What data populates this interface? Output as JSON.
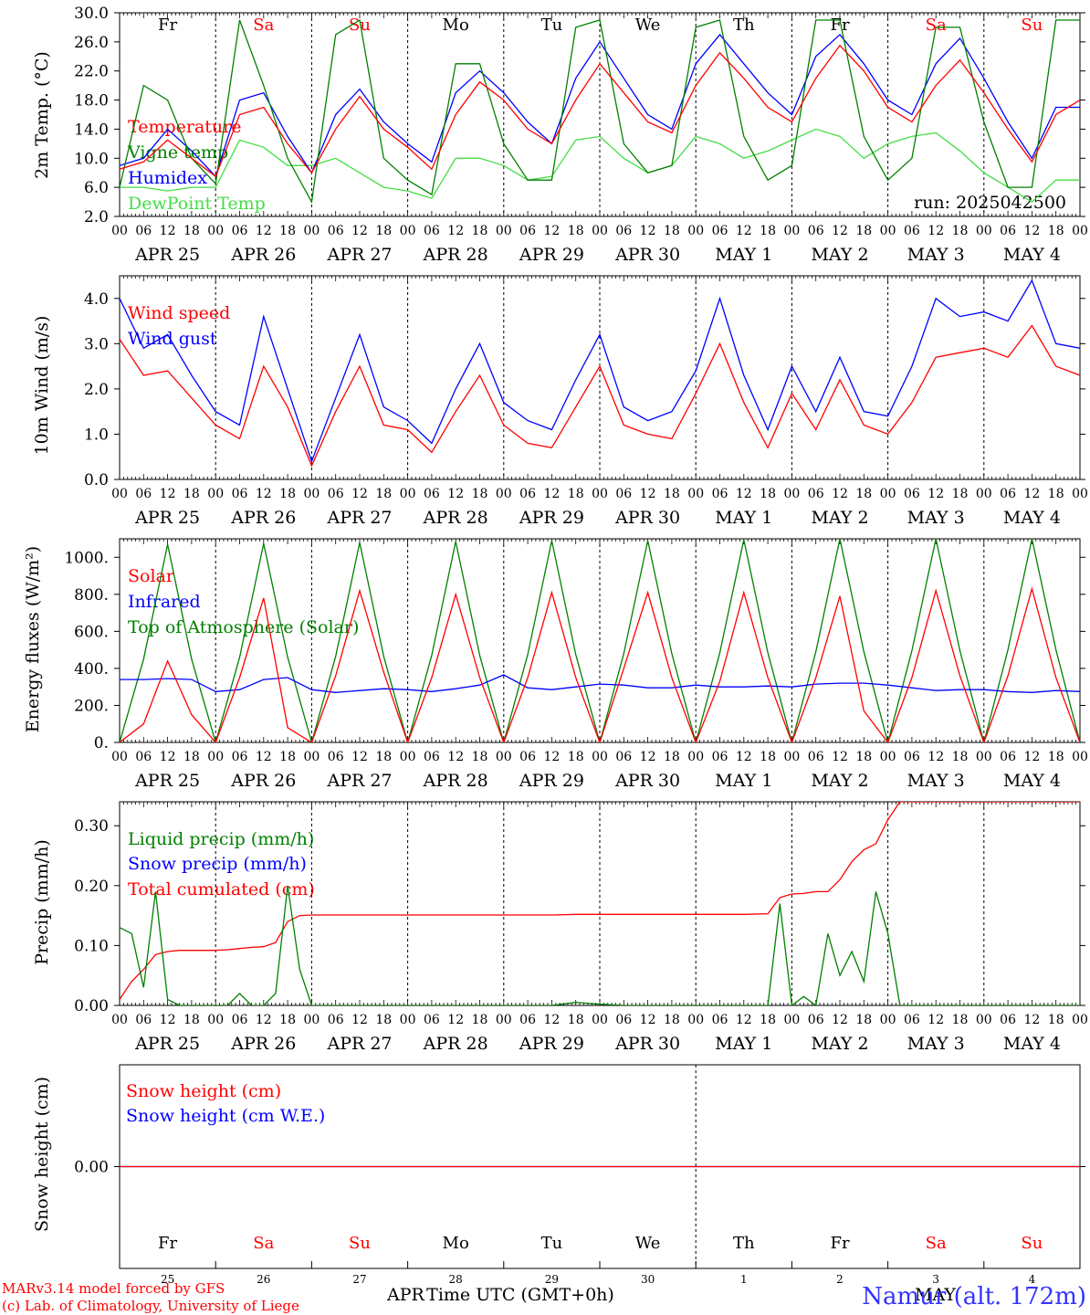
{
  "days": [
    {
      "dow": "Fr",
      "weekend": false,
      "date": "APR 25",
      "num": "25"
    },
    {
      "dow": "Sa",
      "weekend": true,
      "date": "APR 26",
      "num": "26"
    },
    {
      "dow": "Su",
      "weekend": true,
      "date": "APR 27",
      "num": "27"
    },
    {
      "dow": "Mo",
      "weekend": false,
      "date": "APR 28",
      "num": "28"
    },
    {
      "dow": "Tu",
      "weekend": false,
      "date": "APR 29",
      "num": "29"
    },
    {
      "dow": "We",
      "weekend": false,
      "date": "APR 30",
      "num": "30"
    },
    {
      "dow": "Th",
      "weekend": false,
      "date": "MAY  1",
      "num": "1"
    },
    {
      "dow": "Fr",
      "weekend": false,
      "date": "MAY  2",
      "num": "2"
    },
    {
      "dow": "Sa",
      "weekend": true,
      "date": "MAY  3",
      "num": "3"
    },
    {
      "dow": "Su",
      "weekend": true,
      "date": "MAY  4",
      "num": "4"
    }
  ],
  "hour_ticks": [
    "00",
    "06",
    "12",
    "18"
  ],
  "month_labels": {
    "apr": "APR",
    "may": "MAY"
  },
  "xlabel": "Time UTC (GMT+0h)",
  "credits": [
    "MARv3.14 model forced by GFS",
    "(c) Lab. of Climatology, University of Liege"
  ],
  "station": "Namur (alt. 172m)",
  "colors": {
    "red": "#ff0000",
    "green": "#008000",
    "blue": "#0000ff",
    "lime": "#44dd44",
    "weekday": "#000000",
    "weekend": "#ff0000"
  },
  "chart_data": [
    {
      "type": "line",
      "ylabel": "2m Temp. (°C)",
      "ylim": [
        2,
        30
      ],
      "yticks": [
        "30.0",
        "26.0",
        "22.0",
        "18.0",
        "14.0",
        "10.0",
        "6.0",
        "2.0"
      ],
      "ytick_values": [
        30,
        26,
        22,
        18,
        14,
        10,
        6,
        2
      ],
      "note": "run: 2025042500",
      "x_hours": [
        0,
        6,
        12,
        18,
        24,
        30,
        36,
        42,
        48,
        54,
        60,
        66,
        72,
        78,
        84,
        90,
        96,
        102,
        108,
        114,
        120,
        126,
        132,
        138,
        144,
        150,
        156,
        162,
        168,
        174,
        180,
        186,
        192,
        198,
        204,
        210,
        216,
        222,
        228,
        234,
        240
      ],
      "series": [
        {
          "name": "Temperature",
          "color": "red",
          "values": [
            8.5,
            9.5,
            12.5,
            10,
            7.5,
            16,
            17,
            12,
            8,
            14,
            18.5,
            14,
            11.5,
            8.5,
            16,
            20.5,
            18,
            14,
            12,
            18,
            23,
            19,
            15,
            13.5,
            20,
            24.5,
            21,
            17,
            15,
            21,
            25.5,
            22,
            17,
            15,
            20,
            23.5,
            19,
            14,
            9.5,
            16,
            18
          ]
        },
        {
          "name": "Vigne temp",
          "color": "green",
          "values": [
            6,
            20,
            18,
            10,
            6.5,
            29,
            20,
            10,
            4,
            27,
            29,
            10,
            7,
            5,
            23,
            23,
            12,
            7,
            7,
            28,
            29,
            12,
            8,
            9,
            28,
            29,
            13,
            7,
            9,
            29,
            29,
            13,
            7,
            10,
            28,
            28,
            15,
            6,
            6,
            29,
            29
          ]
        },
        {
          "name": "Humidex",
          "color": "blue",
          "values": [
            9,
            10,
            14,
            11,
            7.5,
            18,
            19,
            13,
            8,
            16,
            19.5,
            15,
            12,
            9.5,
            19,
            22,
            19,
            15,
            12,
            21,
            26,
            21,
            16,
            14,
            23,
            27,
            23,
            19,
            16,
            24,
            27,
            23,
            18,
            16,
            23,
            26.5,
            21,
            15,
            10,
            17,
            17
          ]
        },
        {
          "name": "DewPoint Temp",
          "color": "lime",
          "values": [
            6,
            6,
            5.5,
            6,
            6,
            12.5,
            11.5,
            9,
            9,
            10,
            8,
            6,
            5.5,
            4.5,
            10,
            10,
            9,
            7,
            7.5,
            12.5,
            13,
            10,
            8,
            9,
            13,
            12,
            10,
            11,
            12.5,
            14,
            13,
            10,
            12,
            13,
            13.5,
            11,
            8,
            6,
            4,
            7,
            7
          ]
        }
      ]
    },
    {
      "type": "line",
      "ylabel": "10m Wind (m/s)",
      "ylim": [
        0,
        4.5
      ],
      "yticks": [
        "4.0",
        "3.0",
        "2.0",
        "1.0",
        "0.0"
      ],
      "ytick_values": [
        4,
        3,
        2,
        1,
        0
      ],
      "x_hours": [
        0,
        6,
        12,
        18,
        24,
        30,
        36,
        42,
        48,
        54,
        60,
        66,
        72,
        78,
        84,
        90,
        96,
        102,
        108,
        114,
        120,
        126,
        132,
        138,
        144,
        150,
        156,
        162,
        168,
        174,
        180,
        186,
        192,
        198,
        204,
        210,
        216,
        222,
        228,
        234,
        240
      ],
      "series": [
        {
          "name": "Wind speed",
          "color": "red",
          "values": [
            3.1,
            2.3,
            2.4,
            1.8,
            1.2,
            0.9,
            2.5,
            1.6,
            0.3,
            1.5,
            2.5,
            1.2,
            1.1,
            0.6,
            1.5,
            2.3,
            1.2,
            0.8,
            0.7,
            1.6,
            2.5,
            1.2,
            1,
            0.9,
            1.9,
            3.0,
            1.7,
            0.7,
            1.9,
            1.1,
            2.2,
            1.2,
            1.0,
            1.7,
            2.7,
            2.8,
            2.9,
            2.7,
            3.4,
            2.5,
            2.3
          ]
        },
        {
          "name": "Wind gust",
          "color": "blue",
          "values": [
            4.0,
            2.9,
            3.2,
            2.3,
            1.5,
            1.2,
            3.6,
            2.0,
            0.4,
            1.8,
            3.2,
            1.6,
            1.3,
            0.8,
            2.0,
            3.0,
            1.7,
            1.3,
            1.1,
            2.2,
            3.2,
            1.6,
            1.3,
            1.5,
            2.4,
            4.0,
            2.3,
            1.1,
            2.5,
            1.5,
            2.7,
            1.5,
            1.4,
            2.5,
            4.0,
            3.6,
            3.7,
            3.5,
            4.4,
            3.0,
            2.9
          ]
        }
      ]
    },
    {
      "type": "line",
      "ylabel": "Energy fluxes (W/m²)",
      "ylim": [
        0,
        1100
      ],
      "yticks": [
        "1000.",
        "800.",
        "600.",
        "400.",
        "200.",
        "0."
      ],
      "ytick_values": [
        1000,
        800,
        600,
        400,
        200,
        0
      ],
      "x_hours": [
        0,
        6,
        12,
        18,
        24,
        30,
        36,
        42,
        48,
        54,
        60,
        66,
        72,
        78,
        84,
        90,
        96,
        102,
        108,
        114,
        120,
        126,
        132,
        138,
        144,
        150,
        156,
        162,
        168,
        174,
        180,
        186,
        192,
        198,
        204,
        210,
        216,
        222,
        228,
        234,
        240
      ],
      "series": [
        {
          "name": "Solar",
          "color": "red",
          "values": [
            0,
            100,
            440,
            150,
            0,
            350,
            780,
            80,
            0,
            360,
            820,
            380,
            0,
            350,
            800,
            350,
            0,
            350,
            810,
            350,
            0,
            400,
            810,
            350,
            0,
            330,
            810,
            350,
            0,
            350,
            790,
            170,
            0,
            350,
            820,
            360,
            0,
            360,
            830,
            350,
            0
          ]
        },
        {
          "name": "Infrared",
          "color": "blue",
          "values": [
            340,
            340,
            345,
            340,
            275,
            285,
            340,
            350,
            285,
            270,
            280,
            290,
            285,
            275,
            290,
            310,
            365,
            295,
            285,
            300,
            315,
            310,
            295,
            295,
            310,
            300,
            300,
            305,
            300,
            315,
            320,
            320,
            310,
            295,
            280,
            285,
            285,
            275,
            270,
            280,
            275
          ]
        },
        {
          "name": "Top of Atmosphere (Solar)",
          "color": "green",
          "values": [
            0,
            450,
            1070,
            450,
            0,
            460,
            1075,
            460,
            0,
            465,
            1080,
            465,
            0,
            470,
            1085,
            470,
            0,
            475,
            1090,
            475,
            0,
            480,
            1090,
            480,
            0,
            485,
            1095,
            485,
            0,
            490,
            1100,
            490,
            0,
            495,
            1100,
            495,
            0,
            500,
            1100,
            500,
            0
          ]
        }
      ]
    },
    {
      "type": "line",
      "ylabel": "Precip (mm/h)",
      "ylim": [
        0,
        0.34
      ],
      "yticks": [
        "0.30",
        "0.20",
        "0.10",
        "0.00"
      ],
      "ytick_values": [
        0.3,
        0.2,
        0.1,
        0.0
      ],
      "x_hours": [
        0,
        3,
        6,
        9,
        12,
        15,
        18,
        21,
        24,
        27,
        30,
        33,
        36,
        39,
        42,
        45,
        48,
        54,
        60,
        66,
        72,
        78,
        84,
        90,
        96,
        102,
        108,
        114,
        120,
        126,
        132,
        138,
        144,
        150,
        156,
        162,
        165,
        168,
        171,
        174,
        177,
        180,
        183,
        186,
        189,
        192,
        195,
        198,
        201,
        204,
        210,
        216,
        222,
        228,
        234,
        240
      ],
      "series": [
        {
          "name": "Liquid precip (mm/h)",
          "color": "green",
          "values": [
            0.13,
            0.12,
            0.03,
            0.19,
            0.01,
            0,
            0,
            0,
            0,
            0,
            0.02,
            0,
            0,
            0.02,
            0.2,
            0.06,
            0,
            0,
            0,
            0,
            0,
            0,
            0,
            0,
            0,
            0,
            0,
            0.005,
            0.002,
            0,
            0,
            0,
            0,
            0,
            0,
            0,
            0.17,
            0,
            0.015,
            0,
            0.12,
            0.05,
            0.09,
            0.04,
            0.19,
            0.12,
            0,
            0,
            0,
            0,
            0,
            0,
            0,
            0,
            0,
            0
          ]
        },
        {
          "name": "Snow precip (mm/h)",
          "color": "blue",
          "values": []
        },
        {
          "name": "Total cumulated (cm)",
          "color": "red",
          "values": [
            0.01,
            0.04,
            0.06,
            0.085,
            0.09,
            0.092,
            0.092,
            0.092,
            0.092,
            0.093,
            0.095,
            0.097,
            0.098,
            0.105,
            0.14,
            0.15,
            0.151,
            0.151,
            0.151,
            0.151,
            0.151,
            0.151,
            0.151,
            0.151,
            0.151,
            0.151,
            0.151,
            0.152,
            0.152,
            0.152,
            0.152,
            0.152,
            0.152,
            0.152,
            0.152,
            0.153,
            0.18,
            0.186,
            0.187,
            0.19,
            0.19,
            0.21,
            0.24,
            0.26,
            0.27,
            0.31,
            0.34,
            0.34,
            0.34,
            0.34,
            0.34,
            0.34,
            0.34,
            0.34,
            0.34,
            0.34
          ]
        }
      ]
    },
    {
      "type": "line",
      "ylabel": "Snow height (cm)",
      "ylim": [
        -1,
        1
      ],
      "yticks": [
        "0.00"
      ],
      "ytick_values": [
        0
      ],
      "x_hours": [
        0,
        240
      ],
      "series": [
        {
          "name": "Snow height (cm)",
          "color": "red",
          "values": [
            0,
            0
          ]
        },
        {
          "name": "Snow height (cm W.E.)",
          "color": "blue",
          "values": [
            0,
            0
          ]
        }
      ]
    }
  ]
}
